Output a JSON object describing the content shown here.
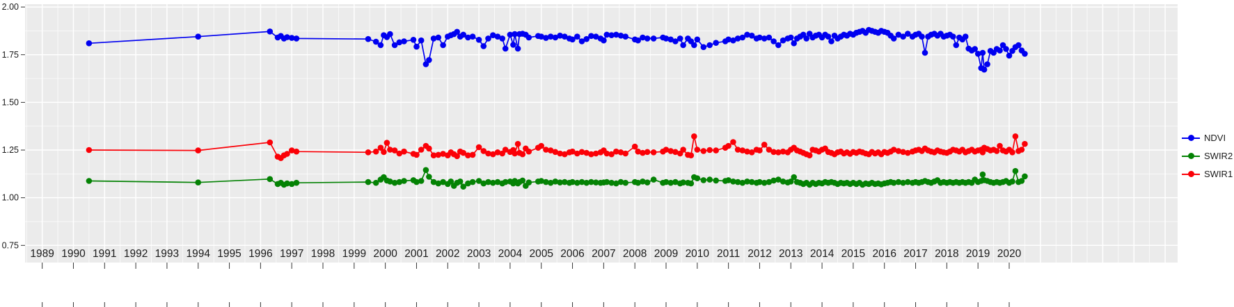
{
  "figure": {
    "background": "#ffffff",
    "panel_background": "#ebebeb",
    "gridline_color": "#ffffff",
    "tick_color": "#333333",
    "label_color": "#1a1a1a"
  },
  "legend": {
    "position": "right"
  },
  "chart_data": {
    "type": "line",
    "title": "",
    "xlabel": "",
    "ylabel": "",
    "x_unit": "year (decimal date)",
    "grid": "major+minor",
    "legend_position": "right",
    "xlim": [
      1988.45,
      2025.4
    ],
    "ylim": [
      0.66,
      2.015
    ],
    "x_ticks": [
      1989,
      1990,
      1991,
      1992,
      1993,
      1994,
      1995,
      1996,
      1997,
      1998,
      1999,
      2000,
      2001,
      2002,
      2003,
      2004,
      2005,
      2006,
      2007,
      2008,
      2009,
      2010,
      2011,
      2012,
      2013,
      2014,
      2015,
      2016,
      2017,
      2018,
      2019,
      2020
    ],
    "y_ticks": [
      0.75,
      1.0,
      1.25,
      1.5,
      1.75,
      2.0
    ],
    "y_tick_labels": [
      "0.75",
      "1.00",
      "1.25",
      "1.50",
      "1.75",
      "2.00"
    ],
    "series": [
      {
        "name": "NDVI",
        "color": "#0000f0"
      },
      {
        "name": "SWIR2",
        "color": "#048204"
      },
      {
        "name": "SWIR1",
        "color": "#fb0007"
      }
    ],
    "columns": [
      "year",
      "NDVI",
      "SWIR2",
      "SWIR1"
    ],
    "points": [
      [
        1990.5,
        1.81,
        1.088,
        1.25
      ],
      [
        1994.0,
        1.845,
        1.08,
        1.248
      ],
      [
        1996.3,
        1.872,
        1.098,
        1.29
      ],
      [
        1996.55,
        1.84,
        1.072,
        1.215
      ],
      [
        1996.65,
        1.848,
        1.078,
        1.208
      ],
      [
        1996.75,
        1.835,
        1.068,
        1.222
      ],
      [
        1996.85,
        1.842,
        1.075,
        1.23
      ],
      [
        1997.0,
        1.838,
        1.072,
        1.248
      ],
      [
        1997.15,
        1.835,
        1.078,
        1.242
      ],
      [
        1999.45,
        1.832,
        1.082,
        1.238
      ],
      [
        1999.7,
        1.818,
        1.078,
        1.242
      ],
      [
        1999.85,
        1.8,
        1.095,
        1.262
      ],
      [
        1999.95,
        1.852,
        1.108,
        1.24
      ],
      [
        2000.05,
        1.842,
        1.09,
        1.288
      ],
      [
        2000.15,
        1.858,
        1.085,
        1.252
      ],
      [
        2000.3,
        1.8,
        1.078,
        1.248
      ],
      [
        2000.45,
        1.815,
        1.082,
        1.232
      ],
      [
        2000.6,
        1.82,
        1.088,
        1.242
      ],
      [
        2000.9,
        1.828,
        1.092,
        1.23
      ],
      [
        2001.0,
        1.792,
        1.082,
        1.225
      ],
      [
        2001.15,
        1.825,
        1.088,
        1.252
      ],
      [
        2001.3,
        1.7,
        1.145,
        1.272
      ],
      [
        2001.4,
        1.722,
        1.11,
        1.258
      ],
      [
        2001.55,
        1.835,
        1.082,
        1.222
      ],
      [
        2001.7,
        1.84,
        1.075,
        1.225
      ],
      [
        2001.85,
        1.8,
        1.082,
        1.23
      ],
      [
        2002.0,
        1.845,
        1.072,
        1.222
      ],
      [
        2002.1,
        1.852,
        1.085,
        1.238
      ],
      [
        2002.2,
        1.858,
        1.062,
        1.228
      ],
      [
        2002.3,
        1.87,
        1.078,
        1.218
      ],
      [
        2002.4,
        1.845,
        1.085,
        1.242
      ],
      [
        2002.5,
        1.855,
        1.058,
        1.235
      ],
      [
        2002.65,
        1.84,
        1.075,
        1.222
      ],
      [
        2002.8,
        1.845,
        1.082,
        1.225
      ],
      [
        2003.0,
        1.828,
        1.088,
        1.265
      ],
      [
        2003.15,
        1.795,
        1.075,
        1.245
      ],
      [
        2003.3,
        1.835,
        1.082,
        1.232
      ],
      [
        2003.45,
        1.852,
        1.078,
        1.228
      ],
      [
        2003.6,
        1.845,
        1.082,
        1.238
      ],
      [
        2003.75,
        1.835,
        1.075,
        1.232
      ],
      [
        2003.85,
        1.782,
        1.082,
        1.252
      ],
      [
        2004.0,
        1.855,
        1.085,
        1.24
      ],
      [
        2004.1,
        1.802,
        1.075,
        1.25
      ],
      [
        2004.15,
        1.858,
        1.088,
        1.232
      ],
      [
        2004.25,
        1.782,
        1.075,
        1.282
      ],
      [
        2004.3,
        1.858,
        1.082,
        1.235
      ],
      [
        2004.4,
        1.86,
        1.09,
        1.228
      ],
      [
        2004.5,
        1.855,
        1.062,
        1.258
      ],
      [
        2004.6,
        1.84,
        1.08,
        1.242
      ],
      [
        2004.9,
        1.848,
        1.085,
        1.262
      ],
      [
        2005.0,
        1.845,
        1.088,
        1.272
      ],
      [
        2005.15,
        1.838,
        1.082,
        1.252
      ],
      [
        2005.3,
        1.845,
        1.078,
        1.248
      ],
      [
        2005.45,
        1.84,
        1.085,
        1.24
      ],
      [
        2005.6,
        1.85,
        1.08,
        1.232
      ],
      [
        2005.75,
        1.845,
        1.082,
        1.228
      ],
      [
        2005.9,
        1.835,
        1.078,
        1.238
      ],
      [
        2006.0,
        1.83,
        1.082,
        1.242
      ],
      [
        2006.15,
        1.845,
        1.078,
        1.232
      ],
      [
        2006.3,
        1.82,
        1.082,
        1.24
      ],
      [
        2006.45,
        1.832,
        1.078,
        1.235
      ],
      [
        2006.6,
        1.848,
        1.082,
        1.228
      ],
      [
        2006.75,
        1.845,
        1.08,
        1.232
      ],
      [
        2006.9,
        1.835,
        1.078,
        1.238
      ],
      [
        2007.0,
        1.825,
        1.08,
        1.248
      ],
      [
        2007.1,
        1.855,
        1.082,
        1.232
      ],
      [
        2007.25,
        1.852,
        1.078,
        1.228
      ],
      [
        2007.4,
        1.855,
        1.075,
        1.242
      ],
      [
        2007.55,
        1.85,
        1.082,
        1.238
      ],
      [
        2007.7,
        1.845,
        1.078,
        1.232
      ],
      [
        2008.0,
        1.83,
        1.082,
        1.268
      ],
      [
        2008.1,
        1.825,
        1.078,
        1.242
      ],
      [
        2008.25,
        1.84,
        1.085,
        1.235
      ],
      [
        2008.4,
        1.835,
        1.08,
        1.24
      ],
      [
        2008.6,
        1.835,
        1.095,
        1.238
      ],
      [
        2008.9,
        1.84,
        1.078,
        1.242
      ],
      [
        2009.0,
        1.835,
        1.082,
        1.252
      ],
      [
        2009.15,
        1.83,
        1.078,
        1.245
      ],
      [
        2009.3,
        1.82,
        1.082,
        1.24
      ],
      [
        2009.45,
        1.835,
        1.075,
        1.232
      ],
      [
        2009.55,
        1.8,
        1.08,
        1.252
      ],
      [
        2009.7,
        1.835,
        1.078,
        1.225
      ],
      [
        2009.8,
        1.82,
        1.075,
        1.222
      ],
      [
        2009.9,
        1.8,
        1.108,
        1.322
      ],
      [
        2010.0,
        1.83,
        1.102,
        1.252
      ],
      [
        2010.2,
        1.79,
        1.092,
        1.245
      ],
      [
        2010.4,
        1.8,
        1.095,
        1.25
      ],
      [
        2010.6,
        1.812,
        1.09,
        1.248
      ],
      [
        2010.9,
        1.82,
        1.088,
        1.262
      ],
      [
        2011.0,
        1.83,
        1.092,
        1.272
      ],
      [
        2011.15,
        1.825,
        1.085,
        1.292
      ],
      [
        2011.3,
        1.835,
        1.082,
        1.252
      ],
      [
        2011.45,
        1.84,
        1.078,
        1.248
      ],
      [
        2011.6,
        1.855,
        1.085,
        1.242
      ],
      [
        2011.75,
        1.85,
        1.082,
        1.238
      ],
      [
        2011.9,
        1.835,
        1.078,
        1.252
      ],
      [
        2012.0,
        1.84,
        1.082,
        1.248
      ],
      [
        2012.15,
        1.835,
        1.078,
        1.278
      ],
      [
        2012.3,
        1.84,
        1.082,
        1.252
      ],
      [
        2012.45,
        1.82,
        1.09,
        1.24
      ],
      [
        2012.6,
        1.8,
        1.095,
        1.238
      ],
      [
        2012.75,
        1.825,
        1.085,
        1.242
      ],
      [
        2012.9,
        1.835,
        1.08,
        1.238
      ],
      [
        2013.0,
        1.84,
        1.085,
        1.252
      ],
      [
        2013.1,
        1.81,
        1.108,
        1.262
      ],
      [
        2013.2,
        1.835,
        1.082,
        1.248
      ],
      [
        2013.3,
        1.845,
        1.078,
        1.242
      ],
      [
        2013.4,
        1.855,
        1.072,
        1.235
      ],
      [
        2013.5,
        1.835,
        1.078,
        1.228
      ],
      [
        2013.6,
        1.86,
        1.068,
        1.222
      ],
      [
        2013.7,
        1.84,
        1.078,
        1.252
      ],
      [
        2013.8,
        1.85,
        1.072,
        1.248
      ],
      [
        2013.9,
        1.855,
        1.078,
        1.242
      ],
      [
        2014.0,
        1.84,
        1.075,
        1.252
      ],
      [
        2014.1,
        1.855,
        1.082,
        1.258
      ],
      [
        2014.2,
        1.845,
        1.078,
        1.24
      ],
      [
        2014.3,
        1.82,
        1.082,
        1.235
      ],
      [
        2014.4,
        1.85,
        1.078,
        1.228
      ],
      [
        2014.5,
        1.835,
        1.072,
        1.238
      ],
      [
        2014.6,
        1.845,
        1.078,
        1.242
      ],
      [
        2014.7,
        1.855,
        1.075,
        1.232
      ],
      [
        2014.8,
        1.85,
        1.078,
        1.238
      ],
      [
        2014.9,
        1.86,
        1.072,
        1.23
      ],
      [
        2015.0,
        1.855,
        1.078,
        1.24
      ],
      [
        2015.1,
        1.865,
        1.072,
        1.235
      ],
      [
        2015.2,
        1.87,
        1.078,
        1.242
      ],
      [
        2015.3,
        1.875,
        1.068,
        1.238
      ],
      [
        2015.4,
        1.865,
        1.075,
        1.232
      ],
      [
        2015.5,
        1.88,
        1.072,
        1.228
      ],
      [
        2015.6,
        1.875,
        1.078,
        1.24
      ],
      [
        2015.7,
        1.87,
        1.072,
        1.232
      ],
      [
        2015.8,
        1.865,
        1.075,
        1.238
      ],
      [
        2015.9,
        1.875,
        1.07,
        1.228
      ],
      [
        2016.0,
        1.87,
        1.075,
        1.24
      ],
      [
        2016.1,
        1.865,
        1.078,
        1.235
      ],
      [
        2016.2,
        1.85,
        1.082,
        1.242
      ],
      [
        2016.3,
        1.835,
        1.078,
        1.252
      ],
      [
        2016.45,
        1.855,
        1.082,
        1.245
      ],
      [
        2016.6,
        1.845,
        1.078,
        1.24
      ],
      [
        2016.75,
        1.86,
        1.082,
        1.235
      ],
      [
        2016.9,
        1.845,
        1.078,
        1.242
      ],
      [
        2017.0,
        1.855,
        1.082,
        1.248
      ],
      [
        2017.1,
        1.86,
        1.078,
        1.252
      ],
      [
        2017.2,
        1.845,
        1.082,
        1.245
      ],
      [
        2017.3,
        1.76,
        1.088,
        1.258
      ],
      [
        2017.4,
        1.845,
        1.082,
        1.248
      ],
      [
        2017.5,
        1.855,
        1.078,
        1.242
      ],
      [
        2017.6,
        1.86,
        1.085,
        1.238
      ],
      [
        2017.7,
        1.85,
        1.092,
        1.248
      ],
      [
        2017.8,
        1.86,
        1.078,
        1.242
      ],
      [
        2017.9,
        1.845,
        1.082,
        1.238
      ],
      [
        2018.0,
        1.85,
        1.078,
        1.235
      ],
      [
        2018.1,
        1.855,
        1.082,
        1.242
      ],
      [
        2018.2,
        1.845,
        1.078,
        1.252
      ],
      [
        2018.3,
        1.8,
        1.082,
        1.248
      ],
      [
        2018.4,
        1.84,
        1.078,
        1.242
      ],
      [
        2018.5,
        1.83,
        1.082,
        1.252
      ],
      [
        2018.6,
        1.845,
        1.078,
        1.238
      ],
      [
        2018.7,
        1.782,
        1.082,
        1.245
      ],
      [
        2018.8,
        1.772,
        1.078,
        1.252
      ],
      [
        2018.9,
        1.78,
        1.095,
        1.242
      ],
      [
        2019.0,
        1.755,
        1.082,
        1.248
      ],
      [
        2019.1,
        1.68,
        1.088,
        1.252
      ],
      [
        2019.15,
        1.76,
        1.122,
        1.238
      ],
      [
        2019.2,
        1.672,
        1.092,
        1.262
      ],
      [
        2019.3,
        1.7,
        1.088,
        1.255
      ],
      [
        2019.4,
        1.77,
        1.082,
        1.248
      ],
      [
        2019.5,
        1.76,
        1.078,
        1.252
      ],
      [
        2019.6,
        1.78,
        1.082,
        1.245
      ],
      [
        2019.7,
        1.772,
        1.078,
        1.272
      ],
      [
        2019.8,
        1.8,
        1.082,
        1.248
      ],
      [
        2019.9,
        1.78,
        1.088,
        1.242
      ],
      [
        2020.0,
        1.745,
        1.078,
        1.252
      ],
      [
        2020.1,
        1.77,
        1.085,
        1.238
      ],
      [
        2020.2,
        1.79,
        1.14,
        1.322
      ],
      [
        2020.3,
        1.8,
        1.082,
        1.245
      ],
      [
        2020.4,
        1.772,
        1.088,
        1.252
      ],
      [
        2020.5,
        1.755,
        1.112,
        1.282
      ]
    ]
  }
}
